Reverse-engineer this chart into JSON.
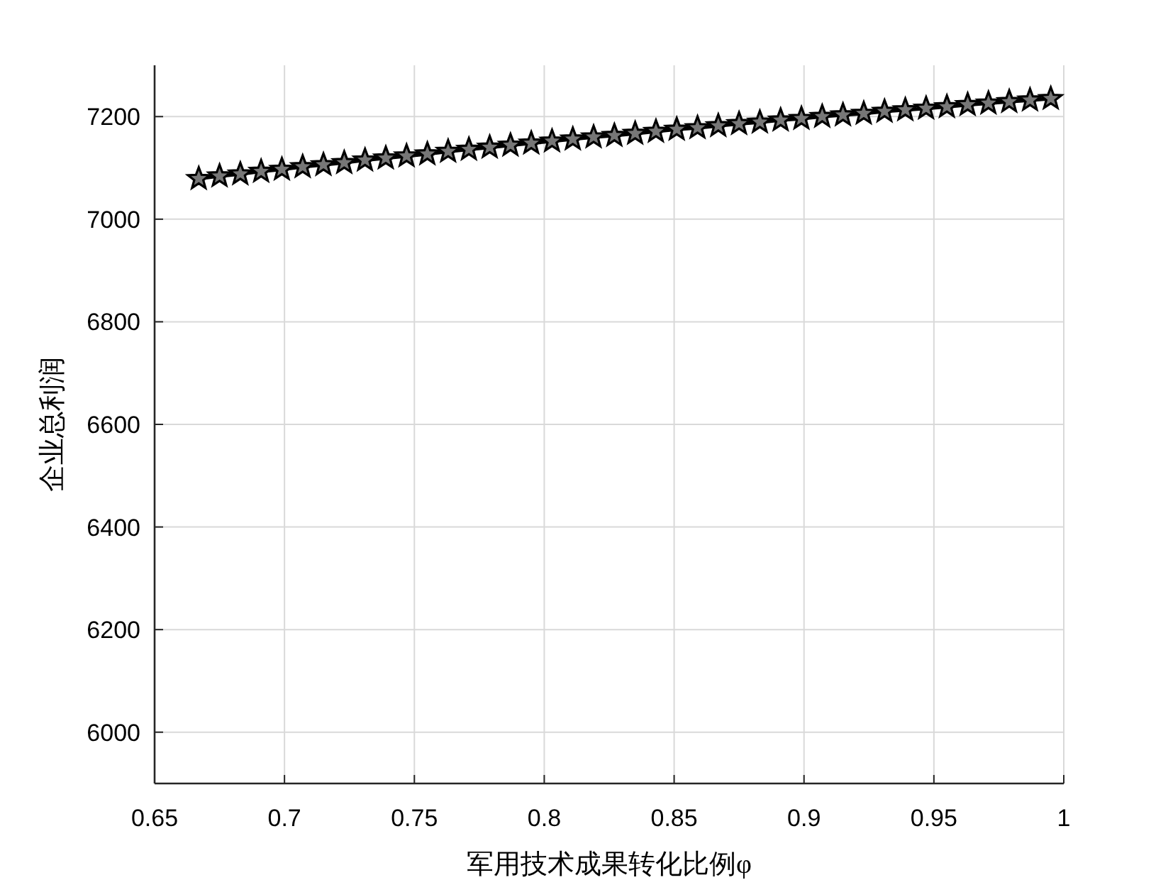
{
  "chart_data": {
    "type": "line",
    "xlabel": "军用技术成果转化比例φ",
    "ylabel": "企业总利润",
    "x": [
      0.667,
      0.675,
      0.683,
      0.691,
      0.699,
      0.707,
      0.715,
      0.723,
      0.731,
      0.739,
      0.747,
      0.755,
      0.763,
      0.771,
      0.779,
      0.787,
      0.795,
      0.803,
      0.811,
      0.819,
      0.827,
      0.835,
      0.843,
      0.851,
      0.859,
      0.867,
      0.875,
      0.883,
      0.891,
      0.899,
      0.907,
      0.915,
      0.923,
      0.931,
      0.939,
      0.947,
      0.955,
      0.963,
      0.971,
      0.979,
      0.987,
      0.995
    ],
    "series": [
      {
        "color": "#000000",
        "values": [
          7079,
          7084,
          7088,
          7093,
          7097,
          7102,
          7106,
          7110,
          7115,
          7119,
          7123,
          7127,
          7132,
          7136,
          7140,
          7144,
          7148,
          7152,
          7156,
          7160,
          7163,
          7167,
          7171,
          7175,
          7178,
          7182,
          7186,
          7189,
          7193,
          7196,
          7200,
          7203,
          7206,
          7210,
          7213,
          7216,
          7219,
          7223,
          7226,
          7229,
          7232,
          7235
        ]
      }
    ],
    "xlim": [
      0.65,
      1
    ],
    "ylim": [
      5900,
      7300
    ],
    "xticks": [
      0.65,
      0.7,
      0.75,
      0.8,
      0.85,
      0.9,
      0.95,
      1
    ],
    "yticks": [
      6000,
      6200,
      6400,
      6600,
      6800,
      7000,
      7200
    ],
    "grid": true,
    "marker": "star",
    "line_style": "solid"
  }
}
